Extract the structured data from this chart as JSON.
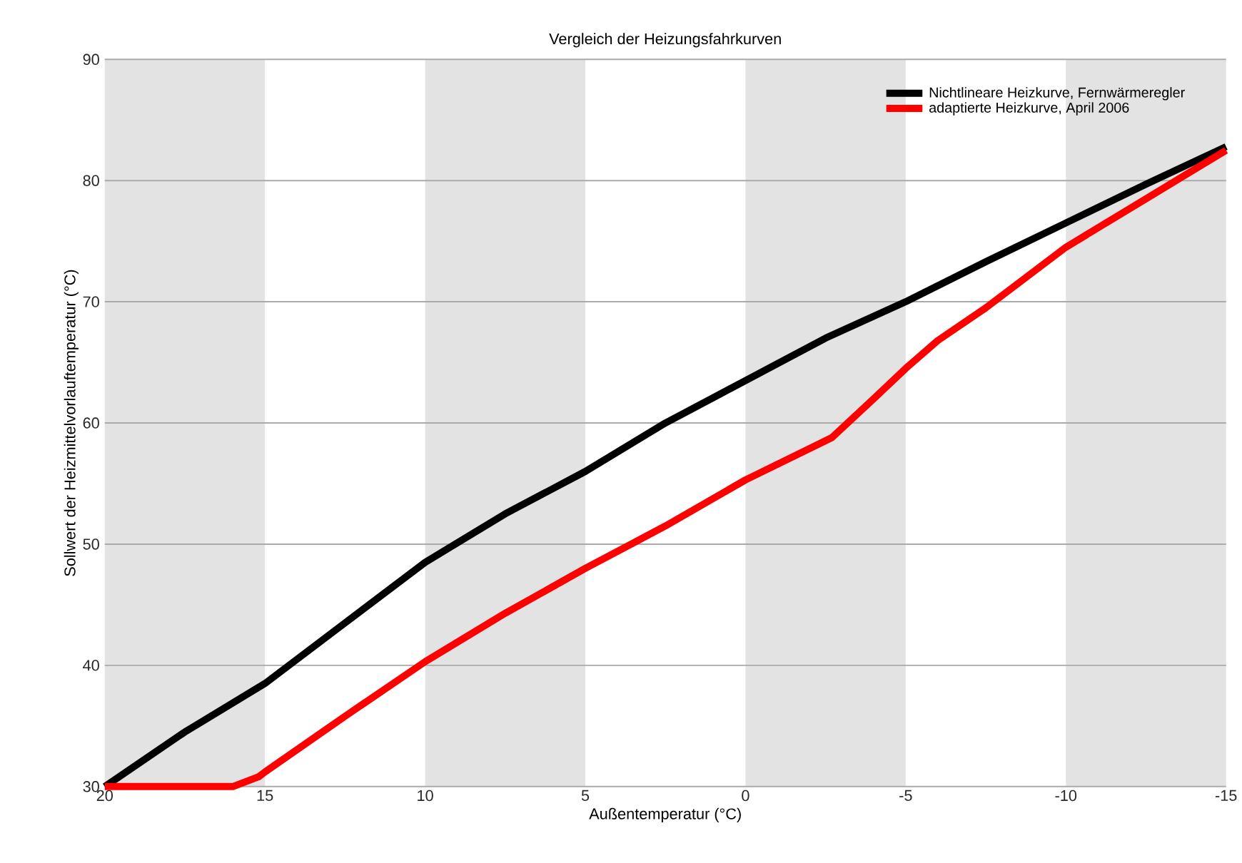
{
  "chart_data": {
    "type": "line",
    "title": "Vergleich der Heizungsfahrkurven",
    "xlabel": "Außentemperatur (°C)",
    "ylabel": "Sollwert der Heizmittelvorlauftemperatur (°C)",
    "xlim": [
      20,
      -15
    ],
    "xticks": [
      20,
      15,
      10,
      5,
      0,
      -5,
      -10,
      -15
    ],
    "ylim": [
      30,
      90
    ],
    "yticks": [
      30,
      40,
      50,
      60,
      70,
      80,
      90
    ],
    "grid": "y",
    "legend": "top right",
    "line_style": "solid",
    "marker": "none",
    "bands": [
      {
        "axis": "x",
        "from": 20,
        "to": 15,
        "color": "#e3e3e3"
      },
      {
        "axis": "x",
        "from": 10,
        "to": 5,
        "color": "#e3e3e3"
      },
      {
        "axis": "x",
        "from": 0,
        "to": -5,
        "color": "#e3e3e3"
      },
      {
        "axis": "x",
        "from": -10,
        "to": -15,
        "color": "#e3e3e3"
      }
    ],
    "series": [
      {
        "name": "Nichtlineare Heizkurve, Fernwärmeregler",
        "color": "#000000",
        "x": [
          20,
          17.5,
          15,
          12.5,
          10,
          7.5,
          5,
          2.5,
          0,
          -2.5,
          -5,
          -7.5,
          -10,
          -12.5,
          -15
        ],
        "values": [
          30,
          34.5,
          38.5,
          43.5,
          48.5,
          52.5,
          56,
          60,
          63.5,
          67,
          70,
          73.3,
          76.5,
          79.7,
          82.8
        ]
      },
      {
        "name": "adaptierte Heizkurve, April 2006",
        "color": "#ff0000",
        "x": [
          20,
          16,
          15.2,
          15,
          12.5,
          10,
          7.5,
          5,
          2.5,
          0,
          -2.7,
          -4,
          -5,
          -6,
          -7.5,
          -10,
          -12.5,
          -15
        ],
        "values": [
          30,
          30,
          30.8,
          31.2,
          35.8,
          40.3,
          44.3,
          48,
          51.5,
          55.3,
          58.8,
          62,
          64.5,
          66.8,
          69.5,
          74.5,
          78.5,
          82.5
        ]
      }
    ]
  }
}
